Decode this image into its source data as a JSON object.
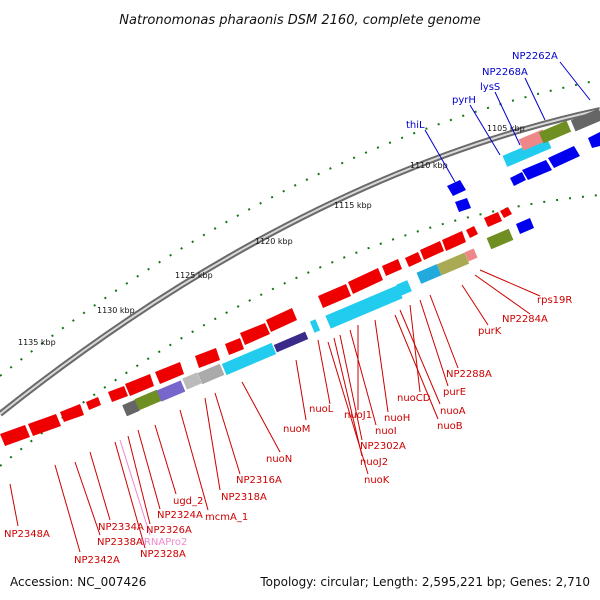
{
  "title": "Natronomonas pharaonis DSM 2160, complete genome",
  "footer": {
    "accession": "Accession: NC_007426",
    "summary": "Topology: circular; Length: 2,595,221 bp; Genes: 2,710"
  },
  "ticks": [
    "1105 kbp",
    "1110 kbp",
    "1115 kbp",
    "1120 kbp",
    "1125 kbp",
    "1130 kbp",
    "1135 kbp"
  ],
  "colors": {
    "forward_cds": "#0000ee",
    "reverse_cds": "#ee0000",
    "label_blue": "#0000cc",
    "label_red": "#cc0000",
    "label_pink": "#ee88cc",
    "backbone": "#888888",
    "tick": "#117711"
  },
  "labels_top": [
    "NP2262A",
    "NP2268A",
    "lysS",
    "pyrH",
    "thiL"
  ],
  "labels_bottom": [
    "rps19R",
    "NP2284A",
    "purK",
    "NP2288A",
    "purE",
    "nuoCD",
    "nuoA",
    "nuoB",
    "nuoH",
    "nuoJ1",
    "nuoI",
    "nuoL",
    "NP2302A",
    "nuoJ2",
    "nuoK",
    "nuoM",
    "nuoN",
    "NP2316A",
    "NP2318A",
    "mcmA_1",
    "ugd_2",
    "NP2324A",
    "NP2326A",
    "tRNAPro2",
    "NP2328A",
    "NP2334A",
    "NP2338A",
    "NP2342A",
    "NP2348A"
  ]
}
